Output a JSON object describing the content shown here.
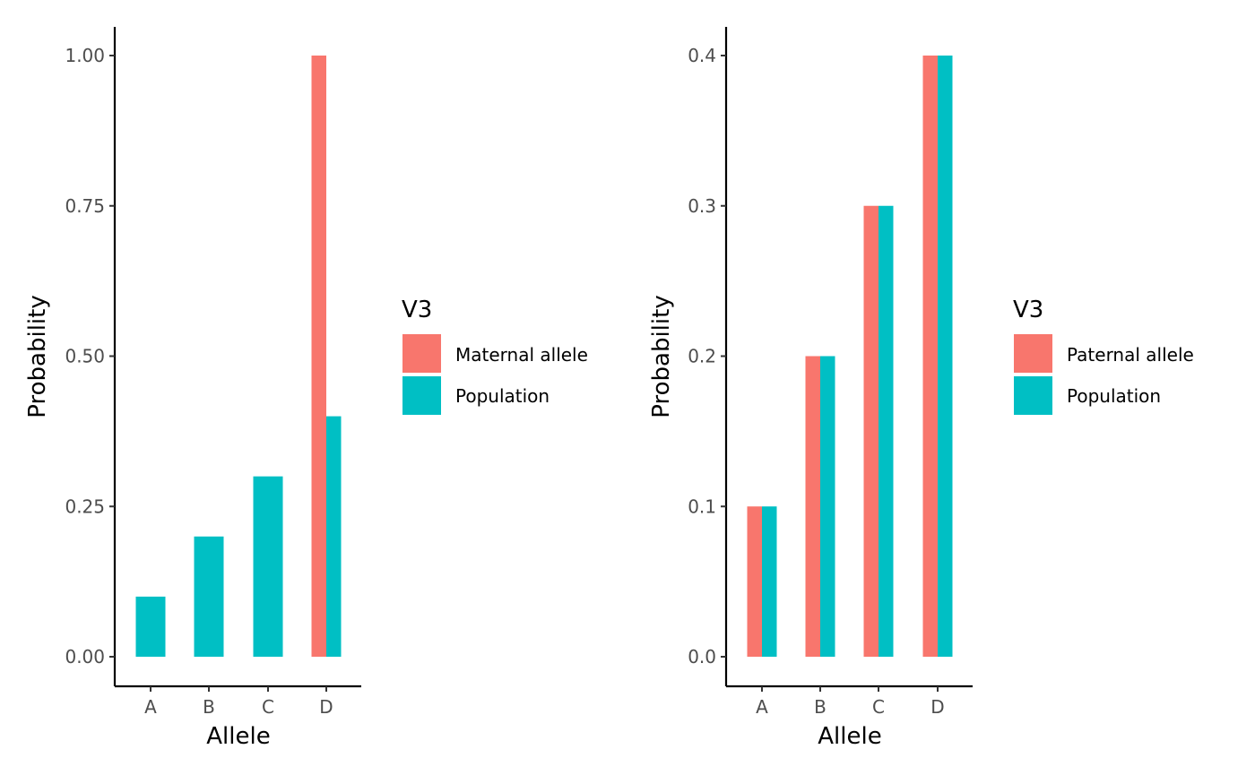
{
  "chart_data": [
    {
      "type": "bar",
      "categories": [
        "A",
        "B",
        "C",
        "D"
      ],
      "series": [
        {
          "name": "Maternal allele",
          "values": [
            0,
            0,
            0,
            1.0
          ],
          "color": "#F8766D"
        },
        {
          "name": "Population",
          "values": [
            0.1,
            0.2,
            0.3,
            0.4
          ],
          "color": "#00BFC4"
        }
      ],
      "xlabel": "Allele",
      "ylabel": "Probability",
      "ylim": [
        0,
        1.0
      ],
      "yticks": [
        "0.00",
        "0.25",
        "0.50",
        "0.75",
        "1.00"
      ],
      "ytick_values": [
        0,
        0.25,
        0.5,
        0.75,
        1.0
      ],
      "legend_title": "V3",
      "legend_position": "right",
      "grid": false
    },
    {
      "type": "bar",
      "categories": [
        "A",
        "B",
        "C",
        "D"
      ],
      "series": [
        {
          "name": "Paternal allele",
          "values": [
            0.1,
            0.2,
            0.3,
            0.4
          ],
          "color": "#F8766D"
        },
        {
          "name": "Population",
          "values": [
            0.1,
            0.2,
            0.3,
            0.4
          ],
          "color": "#00BFC4"
        }
      ],
      "xlabel": "Allele",
      "ylabel": "Probability",
      "ylim": [
        0,
        0.4
      ],
      "yticks": [
        "0.0",
        "0.1",
        "0.2",
        "0.3",
        "0.4"
      ],
      "ytick_values": [
        0,
        0.1,
        0.2,
        0.3,
        0.4
      ],
      "legend_title": "V3",
      "legend_position": "right",
      "grid": false
    }
  ]
}
